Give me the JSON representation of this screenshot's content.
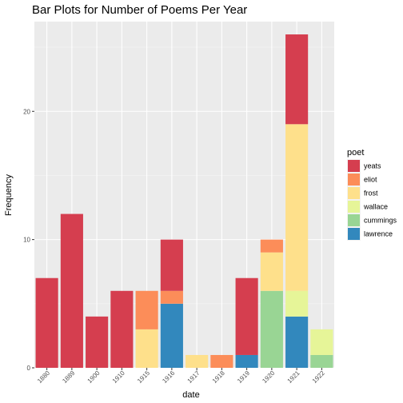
{
  "chart_data": {
    "type": "bar",
    "stacked": true,
    "title": "Bar Plots for Number of Poems Per Year",
    "xlabel": "date",
    "ylabel": "Frequency",
    "ylim": [
      0,
      27
    ],
    "yticks": [
      0,
      10,
      20
    ],
    "grid": true,
    "legend": {
      "title": "poet",
      "placement": "right"
    },
    "categories": [
      "1880",
      "1889",
      "1900",
      "1910",
      "1915",
      "1916",
      "1917",
      "1918",
      "1919",
      "1920",
      "1921",
      "1922"
    ],
    "series": [
      {
        "name": "yeats",
        "color": "#d53e4f",
        "values": [
          7,
          12,
          4,
          6,
          0,
          4,
          0,
          0,
          6,
          0,
          7,
          0
        ]
      },
      {
        "name": "eliot",
        "color": "#fc8d59",
        "values": [
          0,
          0,
          0,
          0,
          3,
          1,
          0,
          1,
          0,
          1,
          0,
          0
        ]
      },
      {
        "name": "frost",
        "color": "#fee08b",
        "values": [
          0,
          0,
          0,
          0,
          3,
          0,
          1,
          0,
          0,
          3,
          13,
          0
        ]
      },
      {
        "name": "wallace",
        "color": "#e6f598",
        "values": [
          0,
          0,
          0,
          0,
          0,
          0,
          0,
          0,
          0,
          0,
          2,
          2
        ]
      },
      {
        "name": "cummings",
        "color": "#99d594",
        "values": [
          0,
          0,
          0,
          0,
          0,
          0,
          0,
          0,
          0,
          6,
          0,
          1
        ]
      },
      {
        "name": "lawrence",
        "color": "#3288bd",
        "values": [
          0,
          0,
          0,
          0,
          0,
          5,
          0,
          0,
          1,
          0,
          4,
          0
        ]
      }
    ]
  }
}
